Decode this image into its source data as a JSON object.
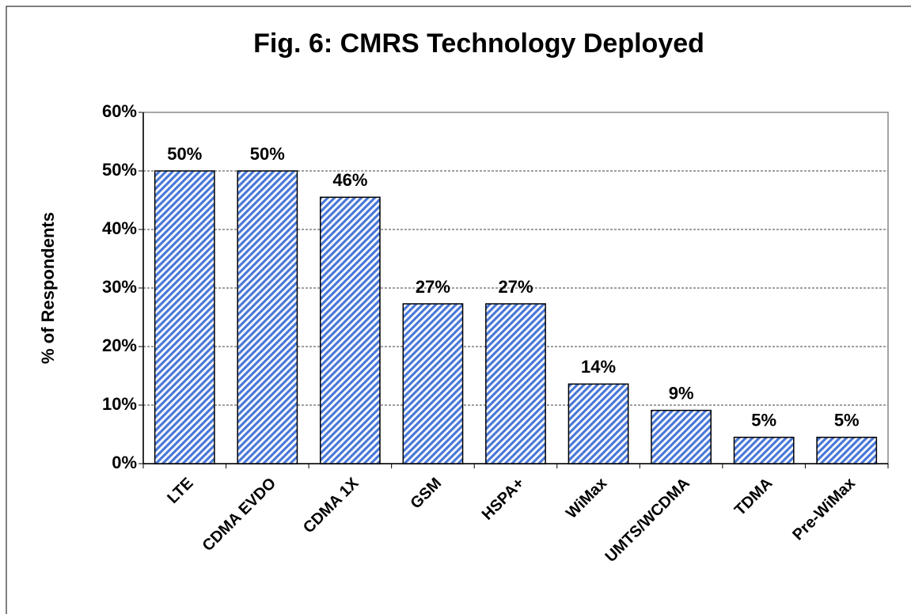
{
  "chart_data": {
    "type": "bar",
    "title": "Fig. 6:  CMRS Technology Deployed",
    "y_label": "% of Respondents",
    "categories": [
      "LTE",
      "CDMA EVDO",
      "CDMA 1X",
      "GSM",
      "HSPA+",
      "WiMax",
      "UMTS/WCDMA",
      "TDMA",
      "Pre-WiMax"
    ],
    "values": [
      50,
      50,
      45.5,
      27.3,
      27.3,
      13.6,
      9.1,
      4.5,
      4.5
    ],
    "value_labels": [
      "50%",
      "50%",
      "46%",
      "27%",
      "27%",
      "14%",
      "9%",
      "5%",
      "5%"
    ],
    "color": "#4a78d8",
    "ylim": [
      0,
      60
    ],
    "yticks": [
      {
        "value": 0,
        "label": "0%"
      },
      {
        "value": 10,
        "label": "10%"
      },
      {
        "value": 20,
        "label": "20%"
      },
      {
        "value": 30,
        "label": "30%"
      },
      {
        "value": 40,
        "label": "40%"
      },
      {
        "value": 50,
        "label": "50%"
      },
      {
        "value": 60,
        "label": "60%"
      }
    ],
    "grid": true
  }
}
